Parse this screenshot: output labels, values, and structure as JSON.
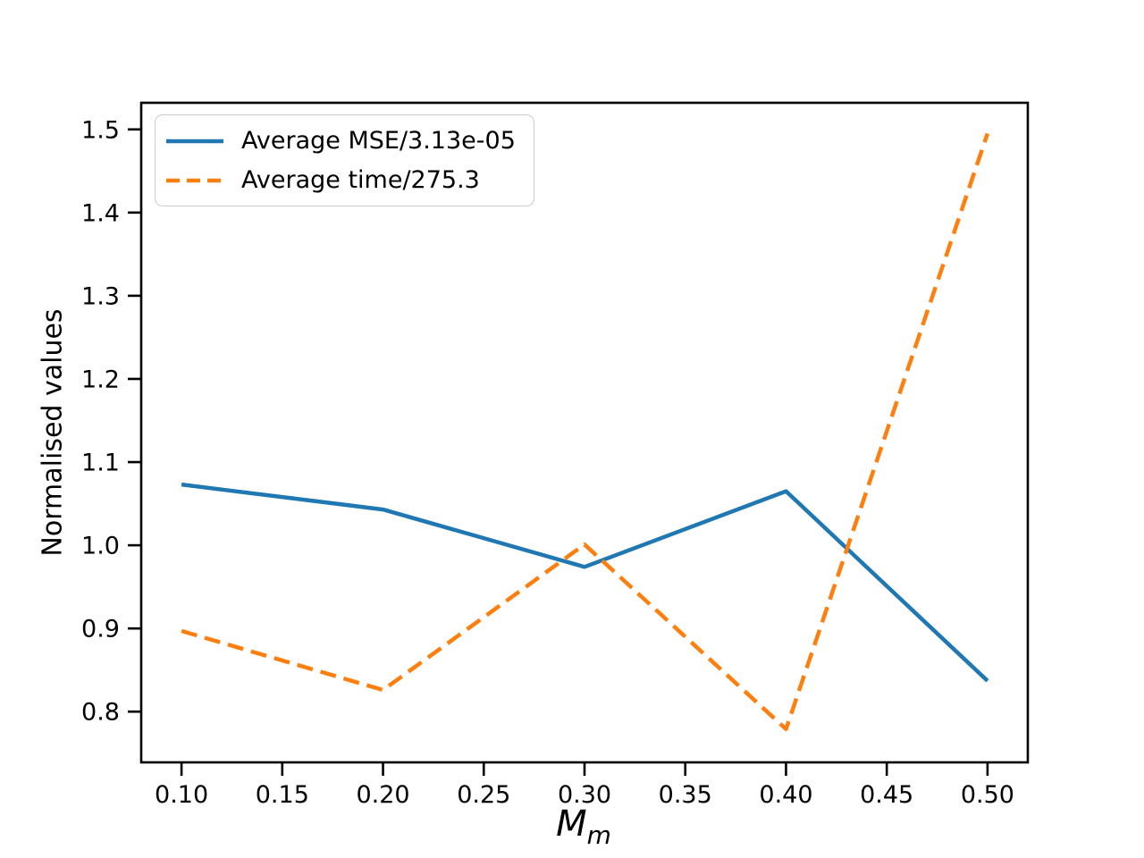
{
  "figure_title": "",
  "chart_data": {
    "type": "line",
    "title": "",
    "xlabel": "M_m",
    "xlabel_math": {
      "base": "M",
      "sub": "m"
    },
    "ylabel": "Normalised values",
    "x": [
      0.1,
      0.2,
      0.3,
      0.4,
      0.5
    ],
    "series": [
      {
        "name": "Average MSE/3.13e-05",
        "color": "#1f77b4",
        "linestyle": "solid",
        "values": [
          1.073,
          1.043,
          0.974,
          1.065,
          0.837
        ]
      },
      {
        "name": "Average time/275.3",
        "color": "#ff7f0e",
        "linestyle": "dashed",
        "values": [
          0.897,
          0.826,
          1.001,
          0.779,
          1.495
        ]
      }
    ],
    "xlim": [
      0.08,
      0.52
    ],
    "ylim": [
      0.739,
      1.532
    ],
    "xticks": {
      "values": [
        0.1,
        0.15,
        0.2,
        0.25,
        0.3,
        0.35,
        0.4,
        0.45,
        0.5
      ],
      "labels": [
        "0.10",
        "0.15",
        "0.20",
        "0.25",
        "0.30",
        "0.35",
        "0.40",
        "0.45",
        "0.50"
      ]
    },
    "yticks": {
      "values": [
        0.8,
        0.9,
        1.0,
        1.1,
        1.2,
        1.3,
        1.4,
        1.5
      ],
      "labels": [
        "0.8",
        "0.9",
        "1.0",
        "1.1",
        "1.2",
        "1.3",
        "1.4",
        "1.5"
      ]
    },
    "grid": false,
    "legend_position": "upper left",
    "axis_color": "#000000",
    "background_color": "#ffffff"
  }
}
